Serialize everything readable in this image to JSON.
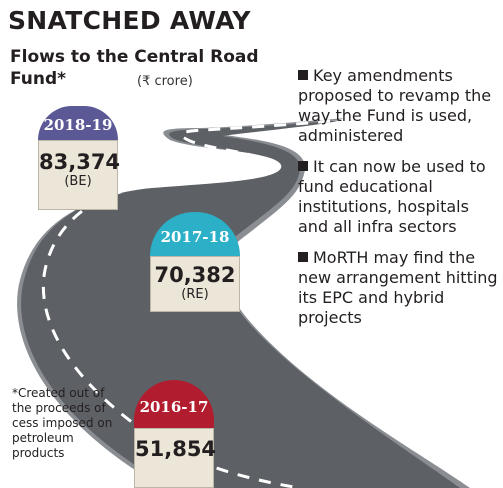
{
  "title": "SNATCHED AWAY",
  "subtitle": "Flows to the Central Road Fund*",
  "unit": "(₹ crore)",
  "milestones": [
    {
      "year": "2018-19",
      "value": "83,374",
      "tag": "(BE)",
      "color": "#5b5896"
    },
    {
      "year": "2017-18",
      "value": "70,382",
      "tag": "(RE)",
      "color": "#2cb0c7"
    },
    {
      "year": "2016-17",
      "value": "51,854",
      "tag": "",
      "color": "#b11c2e"
    }
  ],
  "bullets": [
    "Key amendments proposed to revamp the way the Fund is used, administered",
    "It can now be used to fund educational institutions, hospitals and all infra sectors",
    "MoRTH may find the new arrangement hitting its EPC and hybrid projects"
  ],
  "footnote": "*Created out of the proceeds of cess imposed on petroleum products",
  "colors": {
    "road": "#5d6166",
    "road_edge": "#8a8e93",
    "lane": "#ffffff"
  }
}
